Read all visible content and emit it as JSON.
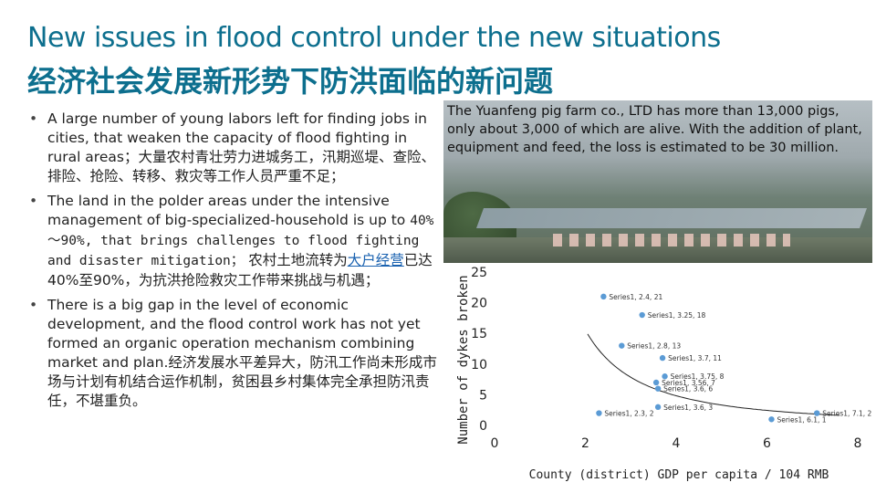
{
  "slide": {
    "title_en": "New issues in flood control under the new situations",
    "title_zh": "经济社会发展新形势下防洪面临的新问题"
  },
  "bullets": {
    "b1_en": "A large number of young labors left for finding jobs in cities, that weaken the capacity of flood fighting in rural areas；",
    "b1_zh": "大量农村青壮劳力进城务工，汛期巡堤、查险、排险、抢险、转移、救灾等工作人员严重不足；",
    "b2_en_a": "The land in the polder areas under the intensive management of big-specialized-household is up to",
    "b2_en_b": "40%～90%, that brings challenges to flood fighting and disaster mitigation；",
    "b2_zh_a": "农村土地流转为",
    "b2_zh_link": "大户经营",
    "b2_zh_b": "已达40%至90%，为抗洪抢险救灾工作带来挑战与机遇；",
    "b3_en": "There is a big gap in the level of economic development, and the flood control work has not yet formed an organic operation mechanism combining market and plan.",
    "b3_zh": "经济发展水平差异大，防汛工作尚未形成市场与计划有机结合运作机制，贫困县乡村集体完全承担防汛责任，不堪重负。"
  },
  "photo": {
    "caption": "The Yuanfeng pig farm co., LTD has more than 13,000 pigs, only about 3,000 of which are alive. With the addition of plant, equipment and feed, the loss is estimated to be 30 million."
  },
  "colors": {
    "title": "#0d6f8e",
    "marker": "#5b9bd5",
    "trend": "#222222"
  },
  "chart_data": {
    "type": "scatter",
    "xlabel": "County (district) GDP per capita / 104 RMB",
    "ylabel": "Number of dykes broken",
    "xlim": [
      0,
      8
    ],
    "ylim": [
      0,
      25
    ],
    "xticks": [
      "0",
      "2",
      "4",
      "6",
      "8"
    ],
    "yticks": [
      "0",
      "5",
      "10",
      "15",
      "20",
      "25"
    ],
    "trendline": "power",
    "series": [
      {
        "name": "Series1",
        "points": [
          {
            "x": 2.4,
            "y": 21,
            "label": "Series1, 2.4, 21"
          },
          {
            "x": 3.25,
            "y": 18,
            "label": "Series1, 3.25, 18"
          },
          {
            "x": 2.8,
            "y": 13,
            "label": "Series1, 2.8, 13"
          },
          {
            "x": 3.7,
            "y": 11,
            "label": "Series1, 3.7, 11"
          },
          {
            "x": 3.75,
            "y": 8,
            "label": "Series1, 3.75, 8"
          },
          {
            "x": 3.56,
            "y": 7,
            "label": "Series1, 3.56, 7"
          },
          {
            "x": 3.6,
            "y": 6,
            "label": "Series1, 3.6, 6"
          },
          {
            "x": 3.6,
            "y": 3,
            "label": "Series1, 3.6, 3"
          },
          {
            "x": 2.3,
            "y": 2,
            "label": "Series1, 2.3, 2"
          },
          {
            "x": 6.1,
            "y": 1,
            "label": "Series1, 6.1, 1"
          },
          {
            "x": 7.1,
            "y": 2,
            "label": "Series1, 7.1, 2"
          }
        ]
      }
    ]
  }
}
